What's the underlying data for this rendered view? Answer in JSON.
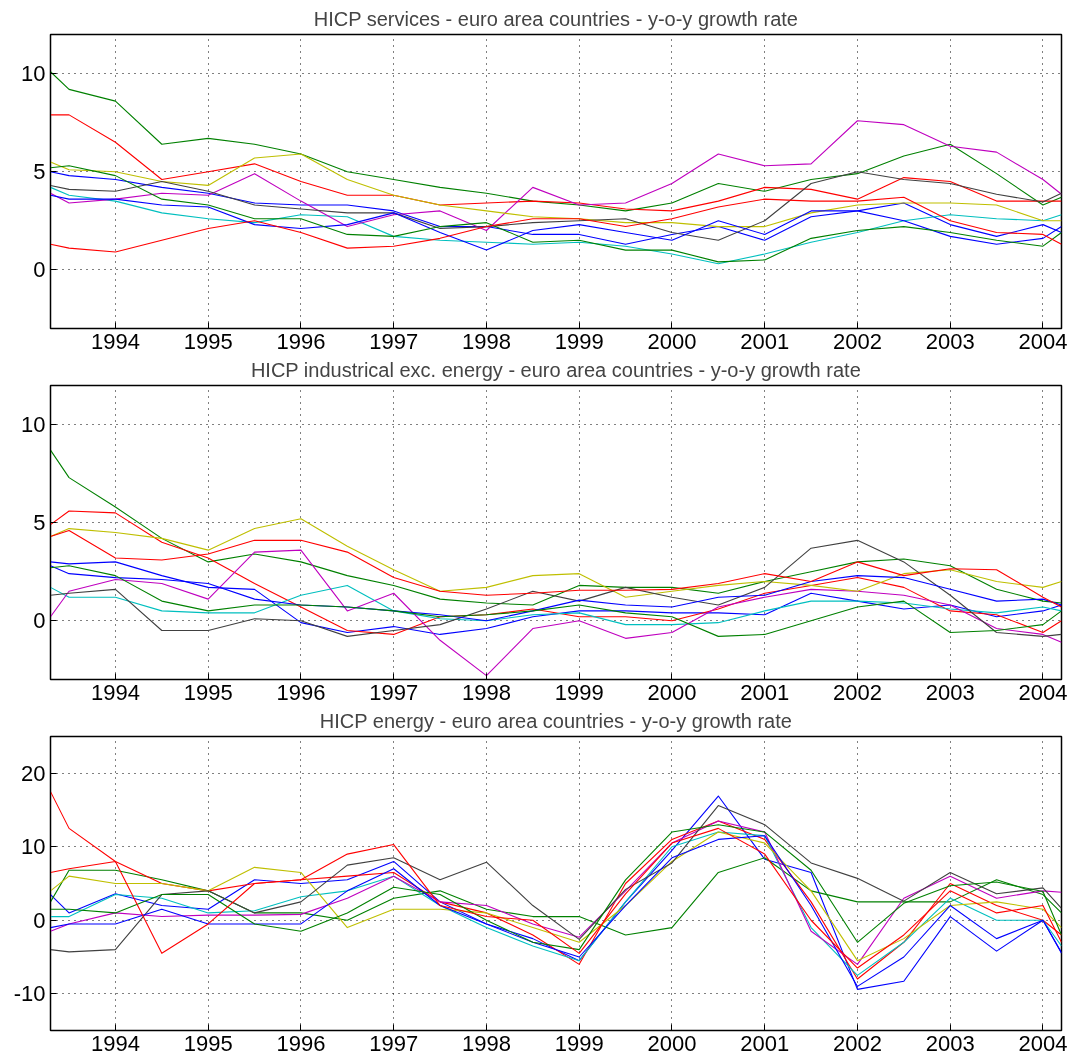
{
  "chart_data": [
    {
      "type": "line",
      "title": "HICP services - euro area countries - y-o-y growth rate",
      "x": [
        1993.3,
        1993.5,
        1994.0,
        1994.5,
        1995.0,
        1995.5,
        1996.0,
        1996.5,
        1997.0,
        1997.5,
        1998.0,
        1998.5,
        1999.0,
        1999.5,
        2000.0,
        2000.5,
        2001.0,
        2001.5,
        2002.0,
        2002.5,
        2003.0,
        2003.5,
        2004.0,
        2004.2
      ],
      "xlim": [
        1993.3,
        2004.2
      ],
      "xticks": [
        1994,
        1995,
        1996,
        1997,
        1998,
        1999,
        2000,
        2001,
        2002,
        2003,
        2004
      ],
      "ylim": [
        -3,
        12
      ],
      "yticks": [
        0,
        5,
        10
      ],
      "grid": true,
      "line_style": "solid",
      "series": [
        {
          "color": "#0000ff",
          "values": [
            5.0,
            4.8,
            4.6,
            4.2,
            3.9,
            3.4,
            3.3,
            3.3,
            3.0,
            2.2,
            2.2,
            1.8,
            1.8,
            1.3,
            1.8,
            2.2,
            1.5,
            2.7,
            3.0,
            3.4,
            2.3,
            1.7,
            2.3,
            1.9
          ]
        },
        {
          "color": "#008000",
          "values": [
            10.1,
            9.2,
            8.6,
            6.4,
            6.7,
            6.4,
            5.9,
            5.0,
            4.6,
            4.2,
            3.9,
            3.5,
            3.3,
            3.0,
            3.4,
            4.4,
            4.0,
            4.6,
            4.9,
            5.8,
            6.4,
            4.9,
            3.3,
            3.7
          ]
        },
        {
          "color": "#ff0000",
          "values": [
            7.9,
            7.9,
            6.5,
            4.6,
            5.0,
            5.4,
            4.5,
            3.8,
            3.8,
            3.3,
            3.4,
            3.5,
            3.4,
            3.1,
            3.0,
            3.5,
            4.2,
            4.1,
            3.6,
            4.7,
            4.5,
            3.5,
            3.5,
            3.5
          ]
        },
        {
          "color": "#00bfbf",
          "values": [
            4.2,
            3.8,
            3.5,
            2.9,
            2.6,
            2.4,
            2.8,
            2.7,
            1.7,
            1.5,
            1.4,
            1.3,
            1.4,
            1.2,
            0.8,
            0.3,
            0.8,
            1.4,
            1.9,
            2.5,
            2.8,
            2.6,
            2.5,
            2.8
          ]
        },
        {
          "color": "#bf00bf",
          "values": [
            3.9,
            3.4,
            3.6,
            3.9,
            3.8,
            4.9,
            3.5,
            2.2,
            2.8,
            3.0,
            2.0,
            4.2,
            3.3,
            3.4,
            4.4,
            5.9,
            5.3,
            5.4,
            7.6,
            7.4,
            6.3,
            6.0,
            4.6,
            3.85
          ]
        },
        {
          "color": "#bfbf00",
          "values": [
            5.5,
            5.1,
            5.0,
            4.5,
            4.3,
            5.7,
            5.9,
            4.6,
            3.8,
            3.3,
            3.0,
            2.7,
            2.6,
            2.4,
            2.4,
            2.2,
            2.2,
            2.9,
            3.3,
            3.4,
            3.4,
            3.3,
            2.5,
            2.5
          ]
        },
        {
          "color": "#404040",
          "values": [
            4.3,
            4.1,
            4.0,
            4.5,
            4.0,
            3.3,
            3.1,
            2.9,
            2.9,
            2.1,
            2.2,
            2.4,
            2.5,
            2.6,
            1.9,
            1.5,
            2.5,
            4.4,
            5.0,
            4.6,
            4.4,
            3.85,
            3.45,
            3.9
          ]
        },
        {
          "color": "#0000ff",
          "values": [
            3.8,
            3.6,
            3.6,
            3.3,
            3.2,
            2.3,
            2.1,
            2.3,
            2.9,
            1.9,
            1.0,
            2.0,
            2.3,
            1.9,
            1.5,
            2.5,
            1.8,
            3.0,
            3.0,
            2.5,
            1.7,
            1.3,
            1.6,
            2.2
          ]
        },
        {
          "color": "#008000",
          "values": [
            5.2,
            5.3,
            4.8,
            3.6,
            3.3,
            2.6,
            2.6,
            1.8,
            1.7,
            2.2,
            2.4,
            1.4,
            1.5,
            1.0,
            1.0,
            0.4,
            0.5,
            1.6,
            2.0,
            2.2,
            1.9,
            1.5,
            1.2,
            1.9
          ]
        },
        {
          "color": "#ff0000",
          "values": [
            1.3,
            1.1,
            0.9,
            1.5,
            2.1,
            2.5,
            1.9,
            1.1,
            1.2,
            1.6,
            2.2,
            2.6,
            2.6,
            2.2,
            2.6,
            3.2,
            3.6,
            3.5,
            3.5,
            3.7,
            2.5,
            1.9,
            1.8,
            1.3
          ]
        }
      ]
    },
    {
      "type": "line",
      "title": "HICP industrical exc. energy - euro area countries - y-o-y growth rate",
      "x": [
        1993.3,
        1993.5,
        1994.0,
        1994.5,
        1995.0,
        1995.5,
        1996.0,
        1996.5,
        1997.0,
        1997.5,
        1998.0,
        1998.5,
        1999.0,
        1999.5,
        2000.0,
        2000.5,
        2001.0,
        2001.5,
        2002.0,
        2002.5,
        2003.0,
        2003.5,
        2004.0,
        2004.2
      ],
      "xlim": [
        1993.3,
        2004.2
      ],
      "xticks": [
        1994,
        1995,
        1996,
        1997,
        1998,
        1999,
        2000,
        2001,
        2002,
        2003,
        2004
      ],
      "ylim": [
        -3,
        12
      ],
      "yticks": [
        0,
        5,
        10
      ],
      "grid": true,
      "line_style": "solid",
      "series": [
        {
          "color": "#0000ff",
          "values": [
            3.0,
            2.9,
            3.0,
            2.3,
            1.7,
            1.6,
            -0.1,
            -0.6,
            -0.3,
            -0.7,
            -0.4,
            0.2,
            0.5,
            0.5,
            0.4,
            0.4,
            0.3,
            1.4,
            1.0,
            0.6,
            0.8,
            0.2,
            0.5,
            0.8
          ]
        },
        {
          "color": "#008000",
          "values": [
            8.7,
            7.3,
            5.8,
            4.2,
            3.0,
            3.4,
            3.0,
            2.3,
            1.8,
            1.1,
            0.9,
            0.8,
            1.8,
            1.7,
            1.7,
            1.4,
            2.0,
            2.5,
            3.0,
            3.15,
            2.8,
            1.6,
            1.0,
            0.9
          ]
        },
        {
          "color": "#ff0000",
          "values": [
            4.9,
            5.6,
            5.5,
            4.0,
            3.2,
            1.9,
            0.7,
            -0.5,
            -0.7,
            0.2,
            0.3,
            0.6,
            0.2,
            0.2,
            0.0,
            0.6,
            1.4,
            1.8,
            2.2,
            1.7,
            0.5,
            0.3,
            -0.6,
            0.0
          ]
        },
        {
          "color": "#00bfbf",
          "values": [
            1.7,
            1.2,
            1.2,
            0.5,
            0.4,
            0.4,
            1.3,
            1.8,
            0.5,
            0.1,
            0.0,
            0.3,
            0.4,
            -0.2,
            -0.2,
            -0.1,
            0.5,
            1.0,
            1.0,
            0.9,
            0.6,
            0.4,
            0.7,
            0.5
          ]
        },
        {
          "color": "#bf00bf",
          "values": [
            0.2,
            1.5,
            2.1,
            1.9,
            1.1,
            3.5,
            3.6,
            0.5,
            1.4,
            -1.0,
            -2.8,
            -0.4,
            0.0,
            -0.9,
            -0.6,
            0.7,
            1.2,
            1.6,
            1.5,
            1.3,
            0.8,
            -0.4,
            -0.7,
            -1.1
          ]
        },
        {
          "color": "#bfbf00",
          "values": [
            4.3,
            4.7,
            4.5,
            4.2,
            3.6,
            4.7,
            5.2,
            3.8,
            2.6,
            1.5,
            1.7,
            2.3,
            2.4,
            1.2,
            1.5,
            1.8,
            2.0,
            1.8,
            1.5,
            2.4,
            2.6,
            2.0,
            1.7,
            2.0
          ]
        },
        {
          "color": "#404040",
          "values": [
            1.3,
            1.4,
            1.6,
            -0.5,
            -0.5,
            0.1,
            0.0,
            -0.8,
            -0.5,
            -0.2,
            0.6,
            1.5,
            1.0,
            1.7,
            1.2,
            0.8,
            1.7,
            3.7,
            4.1,
            3.0,
            1.3,
            -0.6,
            -0.8,
            -0.7
          ]
        },
        {
          "color": "#0000ff",
          "values": [
            2.8,
            2.4,
            2.2,
            2.1,
            1.9,
            1.1,
            0.8,
            0.7,
            0.5,
            0.3,
            0.0,
            0.5,
            1.05,
            0.8,
            0.7,
            1.2,
            1.3,
            2.0,
            2.3,
            2.2,
            1.6,
            1.0,
            1.1,
            0.8
          ]
        },
        {
          "color": "#008000",
          "values": [
            2.7,
            2.8,
            2.3,
            1.0,
            0.5,
            0.8,
            0.8,
            0.7,
            0.5,
            0.2,
            0.3,
            0.5,
            0.8,
            0.4,
            0.2,
            -0.8,
            -0.7,
            0.0,
            0.7,
            1.0,
            -0.6,
            -0.5,
            -0.2,
            0.5
          ]
        },
        {
          "color": "#ff0000",
          "values": [
            4.3,
            4.6,
            3.2,
            3.1,
            3.4,
            4.1,
            4.1,
            3.5,
            2.2,
            1.5,
            1.3,
            1.4,
            1.55,
            1.55,
            1.6,
            1.9,
            2.4,
            2.0,
            3.0,
            2.3,
            2.65,
            2.6,
            1.2,
            0.7
          ]
        }
      ]
    },
    {
      "type": "line",
      "title": "HICP energy - euro area countries - y-o-y growth rate",
      "x": [
        1993.3,
        1993.5,
        1994.0,
        1994.5,
        1995.0,
        1995.5,
        1996.0,
        1996.5,
        1997.0,
        1997.5,
        1998.0,
        1998.5,
        1999.0,
        1999.5,
        2000.0,
        2000.5,
        2001.0,
        2001.5,
        2002.0,
        2002.5,
        2003.0,
        2003.5,
        2004.0,
        2004.2
      ],
      "xlim": [
        1993.3,
        2004.2
      ],
      "xticks": [
        1994,
        1995,
        1996,
        1997,
        1998,
        1999,
        2000,
        2001,
        2002,
        2003,
        2004
      ],
      "ylim": [
        -15,
        25
      ],
      "yticks": [
        -10,
        0,
        10,
        20
      ],
      "grid": true,
      "line_style": "solid",
      "series": [
        {
          "color": "#0000ff",
          "values": [
            3.5,
            1.0,
            3.6,
            2.0,
            1.5,
            5.5,
            5.0,
            5.5,
            8.0,
            2.5,
            -0.5,
            -2.5,
            -5.5,
            2.5,
            9.5,
            16.9,
            8.3,
            6.5,
            -9.4,
            -8.3,
            0.5,
            -4.2,
            0.0,
            -4.4
          ]
        },
        {
          "color": "#008000",
          "values": [
            2.5,
            6.8,
            6.8,
            5.5,
            4.0,
            1.0,
            1.0,
            0.0,
            3.0,
            4.0,
            1.5,
            0.5,
            0.5,
            -2.0,
            -1.0,
            6.5,
            8.5,
            4.0,
            2.5,
            2.5,
            2.5,
            5.5,
            3.5,
            1.0
          ]
        },
        {
          "color": "#ff0000",
          "values": [
            17.5,
            12.5,
            8.0,
            5.0,
            4.0,
            5.0,
            5.5,
            6.0,
            6.5,
            2.5,
            1.0,
            -2.0,
            -6.0,
            5.0,
            11.0,
            13.5,
            11.0,
            2.5,
            -8.0,
            -3.0,
            5.0,
            2.0,
            0.0,
            -2.0
          ]
        },
        {
          "color": "#00bfbf",
          "values": [
            0.5,
            0.5,
            3.5,
            3.0,
            1.0,
            1.3,
            3.2,
            4.0,
            6.0,
            2.0,
            -1.0,
            -3.5,
            -5.5,
            2.5,
            10.0,
            12.0,
            11.5,
            -1.0,
            -7.5,
            -3.0,
            3.0,
            0.0,
            0.0,
            -3.5
          ]
        },
        {
          "color": "#bf00bf",
          "values": [
            -1.5,
            -0.5,
            1.0,
            0.5,
            0.7,
            0.7,
            0.8,
            3.0,
            6.0,
            2.5,
            2.0,
            -0.5,
            -2.3,
            4.0,
            10.5,
            13.5,
            12.0,
            -1.5,
            -6.0,
            3.0,
            6.0,
            3.0,
            4.0,
            3.8
          ]
        },
        {
          "color": "#bfbf00",
          "values": [
            4.0,
            6.0,
            5.0,
            5.0,
            4.0,
            7.2,
            6.5,
            -1.0,
            1.5,
            1.5,
            1.0,
            -1.0,
            -3.0,
            2.0,
            8.0,
            12.0,
            10.5,
            4.0,
            -5.5,
            -2.5,
            2.0,
            2.5,
            1.5,
            -1.0
          ]
        },
        {
          "color": "#404040",
          "values": [
            -4.0,
            -4.3,
            -4.0,
            3.5,
            4.0,
            1.0,
            2.5,
            7.5,
            8.5,
            5.5,
            7.9,
            2.0,
            -2.6,
            4.2,
            7.8,
            15.6,
            13.0,
            7.8,
            5.7,
            2.6,
            6.5,
            3.6,
            4.4,
            1.6
          ]
        },
        {
          "color": "#0000ff",
          "values": [
            -1.0,
            -0.5,
            -0.5,
            1.5,
            -0.5,
            -0.5,
            -0.5,
            4.0,
            7.0,
            2.0,
            -0.5,
            -3.0,
            -5.0,
            2.0,
            8.5,
            11.0,
            11.5,
            2.0,
            -9.0,
            -5.0,
            2.0,
            -2.5,
            0.0,
            -4.5
          ]
        },
        {
          "color": "#008000",
          "values": [
            1.5,
            1.5,
            1.0,
            3.5,
            3.5,
            -0.5,
            -1.5,
            1.0,
            4.5,
            3.5,
            0.0,
            -3.0,
            -4.0,
            5.5,
            12.0,
            13.0,
            12.0,
            6.8,
            -3.0,
            2.3,
            4.7,
            5.2,
            3.9,
            -2.0
          ]
        },
        {
          "color": "#ff0000",
          "values": [
            6.5,
            7.0,
            8.0,
            -4.5,
            -0.5,
            5.0,
            5.5,
            9.0,
            10.3,
            2.0,
            0.5,
            0.0,
            -4.5,
            3.6,
            10.5,
            12.5,
            9.0,
            0.0,
            -6.5,
            -2.0,
            4.0,
            1.0,
            2.0,
            -3.0
          ]
        }
      ]
    }
  ]
}
